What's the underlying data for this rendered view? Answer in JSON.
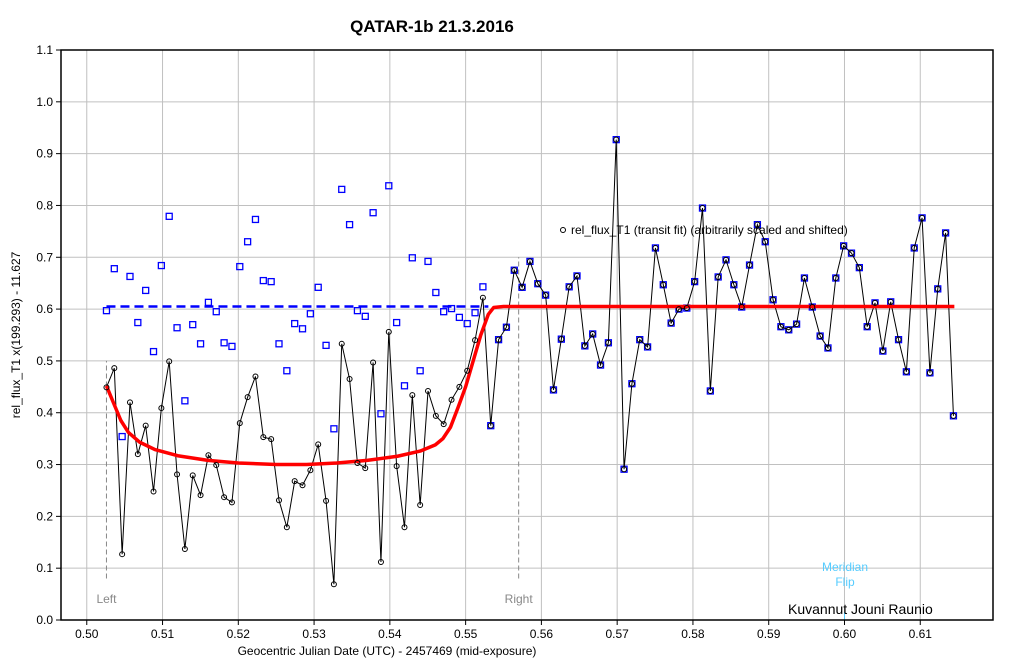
{
  "chart_data": {
    "type": "scatter",
    "title": "QATAR-1b 21.3.2016",
    "xlabel": "Geocentric Julian Date (UTC) - 2457469 (mid-exposure)",
    "ylabel": "rel_flux_T1 x(199.293) - 11.627",
    "xlim": [
      0.4966,
      0.6196
    ],
    "ylim": [
      0.0,
      1.1
    ],
    "grid": true,
    "x_ticks": [
      "0.50",
      "0.51",
      "0.52",
      "0.53",
      "0.54",
      "0.55",
      "0.56",
      "0.57",
      "0.58",
      "0.59",
      "0.60",
      "0.61"
    ],
    "x_tick_values": [
      0.5,
      0.51,
      0.52,
      0.53,
      0.54,
      0.55,
      0.56,
      0.57,
      0.58,
      0.59,
      0.6,
      0.61
    ],
    "y_ticks": [
      "0.0",
      "0.1",
      "0.2",
      "0.3",
      "0.4",
      "0.5",
      "0.6",
      "0.7",
      "0.8",
      "0.9",
      "1.0",
      "1.1"
    ],
    "y_tick_values": [
      0.0,
      0.1,
      0.2,
      0.3,
      0.4,
      0.5,
      0.6,
      0.7,
      0.8,
      0.9,
      1.0,
      1.1
    ],
    "x_start": 0.5026,
    "x_step": 0.001035,
    "series": [
      {
        "name": "rel_flux_T1 (transit fit) (arbitrarily scaled and shifted)",
        "marker": "circle",
        "color": "#000000",
        "connected": true,
        "values": [
          0.449,
          0.486,
          0.127,
          0.42,
          0.32,
          0.375,
          0.248,
          0.409,
          0.499,
          0.281,
          0.137,
          0.279,
          0.241,
          0.318,
          0.299,
          0.237,
          0.227,
          0.38,
          0.43,
          0.47,
          0.353,
          0.349,
          0.231,
          0.179,
          0.268,
          0.26,
          0.289,
          0.339,
          0.23,
          0.069,
          0.533,
          0.465,
          0.303,
          0.293,
          0.497,
          0.112,
          0.556,
          0.297,
          0.179,
          0.434,
          0.222,
          0.442,
          0.394,
          0.378,
          0.425,
          0.45,
          0.481,
          0.54,
          0.622,
          0.375,
          0.541,
          0.565,
          0.675,
          0.642,
          0.692,
          0.649,
          0.627,
          0.444,
          0.542,
          0.643,
          0.664,
          0.529,
          0.552,
          0.492,
          0.535,
          0.927,
          0.291,
          0.456,
          0.541,
          0.527,
          0.718,
          0.647,
          0.573,
          0.6,
          0.602,
          0.653,
          0.795,
          0.442,
          0.662,
          0.695,
          0.647,
          0.604,
          0.685,
          0.763,
          0.73,
          0.618,
          0.566,
          0.56,
          0.571,
          0.66,
          0.604,
          0.548,
          0.525,
          0.66,
          0.722,
          0.708,
          0.68,
          0.566,
          0.612,
          0.519,
          0.614,
          0.541,
          0.479,
          0.718,
          0.776,
          0.477,
          0.639,
          0.747,
          0.394
        ]
      },
      {
        "name": "rel_flux_T1 (blue)",
        "marker": "square",
        "color": "#0000ff",
        "connected": false,
        "values": [
          0.597,
          0.678,
          0.354,
          0.663,
          0.574,
          0.636,
          0.518,
          0.684,
          0.779,
          0.564,
          0.423,
          0.57,
          0.533,
          0.613,
          0.595,
          0.535,
          0.528,
          0.682,
          0.73,
          0.773,
          0.655,
          0.653,
          0.533,
          0.481,
          0.572,
          0.562,
          0.591,
          0.642,
          0.53,
          0.369,
          0.831,
          0.763,
          0.597,
          0.586,
          0.786,
          0.398,
          0.838,
          0.574,
          0.452,
          0.699,
          0.481,
          0.692,
          0.632,
          0.595,
          0.601,
          0.584,
          0.572,
          0.593,
          0.643,
          0.375,
          0.541,
          0.565,
          0.675,
          0.642,
          0.692,
          0.649,
          0.627,
          0.444,
          0.542,
          0.643,
          0.664,
          0.529,
          0.552,
          0.492,
          0.535,
          0.927,
          0.291,
          0.456,
          0.541,
          0.527,
          0.718,
          0.647,
          0.573,
          0.6,
          0.602,
          0.653,
          0.795,
          0.442,
          0.662,
          0.695,
          0.647,
          0.604,
          0.685,
          0.763,
          0.73,
          0.618,
          0.566,
          0.56,
          0.571,
          0.66,
          0.604,
          0.548,
          0.525,
          0.66,
          0.722,
          0.708,
          0.68,
          0.566,
          0.612,
          0.519,
          0.614,
          0.541,
          0.479,
          0.718,
          0.776,
          0.477,
          0.639,
          0.747,
          0.394
        ]
      }
    ],
    "fit_curve": {
      "color": "#ff0000",
      "points": [
        [
          0.5026,
          0.452
        ],
        [
          0.5035,
          0.42
        ],
        [
          0.5045,
          0.385
        ],
        [
          0.5055,
          0.362
        ],
        [
          0.507,
          0.343
        ],
        [
          0.509,
          0.329
        ],
        [
          0.512,
          0.317
        ],
        [
          0.516,
          0.308
        ],
        [
          0.52,
          0.303
        ],
        [
          0.525,
          0.3
        ],
        [
          0.529,
          0.3
        ],
        [
          0.533,
          0.303
        ],
        [
          0.537,
          0.308
        ],
        [
          0.541,
          0.316
        ],
        [
          0.544,
          0.326
        ],
        [
          0.546,
          0.338
        ],
        [
          0.547,
          0.35
        ],
        [
          0.548,
          0.372
        ],
        [
          0.549,
          0.41
        ],
        [
          0.55,
          0.45
        ],
        [
          0.551,
          0.5
        ],
        [
          0.552,
          0.55
        ],
        [
          0.553,
          0.59
        ],
        [
          0.5537,
          0.603
        ],
        [
          0.555,
          0.605
        ],
        [
          0.6145,
          0.605
        ]
      ]
    },
    "baseline": {
      "color": "#0000ff",
      "y": 0.605,
      "x_range": [
        0.5026,
        0.553
      ]
    },
    "markers": [
      {
        "label": "Left",
        "x": 0.5026,
        "y_range": [
          0.08,
          0.5
        ],
        "color": "#888888"
      },
      {
        "label": "Right",
        "x": 0.557,
        "y_range": [
          0.08,
          0.7
        ],
        "color": "#888888"
      }
    ],
    "meridian": {
      "label_1": "Meridian",
      "label_2": "Flip",
      "x": 0.6,
      "color": "#55ccff"
    },
    "legend_text": "rel_flux_T1 (transit fit) (arbitrarily scaled and shifted)",
    "legend_position": "upper-middle",
    "credit": "Kuvannut Jouni Raunio"
  }
}
